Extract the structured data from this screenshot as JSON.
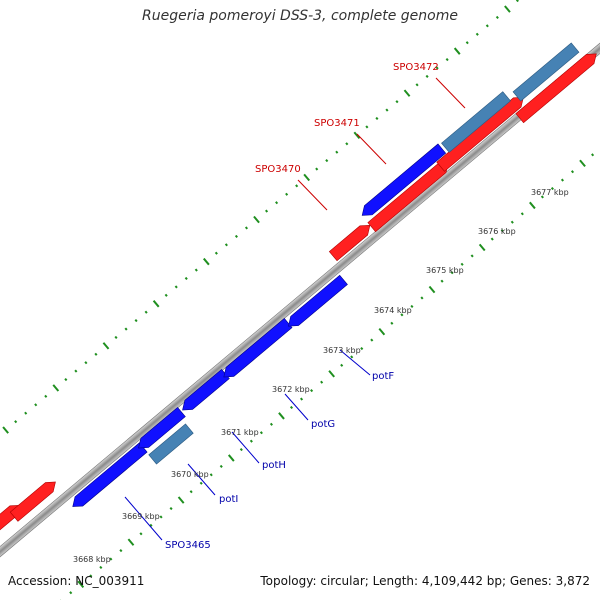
{
  "title": "Ruegeria pomeroyi DSS-3, complete genome",
  "footer": {
    "accession": "Accession: NC_003911",
    "summary": "Topology: circular; Length: 4,109,442 bp; Genes: 3,872"
  },
  "colors": {
    "forward_gene": "#ff0000",
    "reverse_gene": "#0000ff",
    "highlight_gene": "#4682b4",
    "backbone": "#999999",
    "tick": "#007700",
    "label_red": "#cc0000",
    "label_blue": "#0000aa"
  },
  "axis_labels": [
    "3668 kbp",
    "3669 kbp",
    "3670 kbp",
    "3671 kbp",
    "3672 kbp",
    "3673 kbp",
    "3674 kbp",
    "3675 kbp",
    "3676 kbp",
    "3677 kbp"
  ],
  "gene_labels": {
    "outer": [
      "SPO3470",
      "SPO3471",
      "SPO3472"
    ],
    "inner": [
      "SPO3465",
      "potI",
      "potH",
      "potG",
      "potF"
    ]
  }
}
